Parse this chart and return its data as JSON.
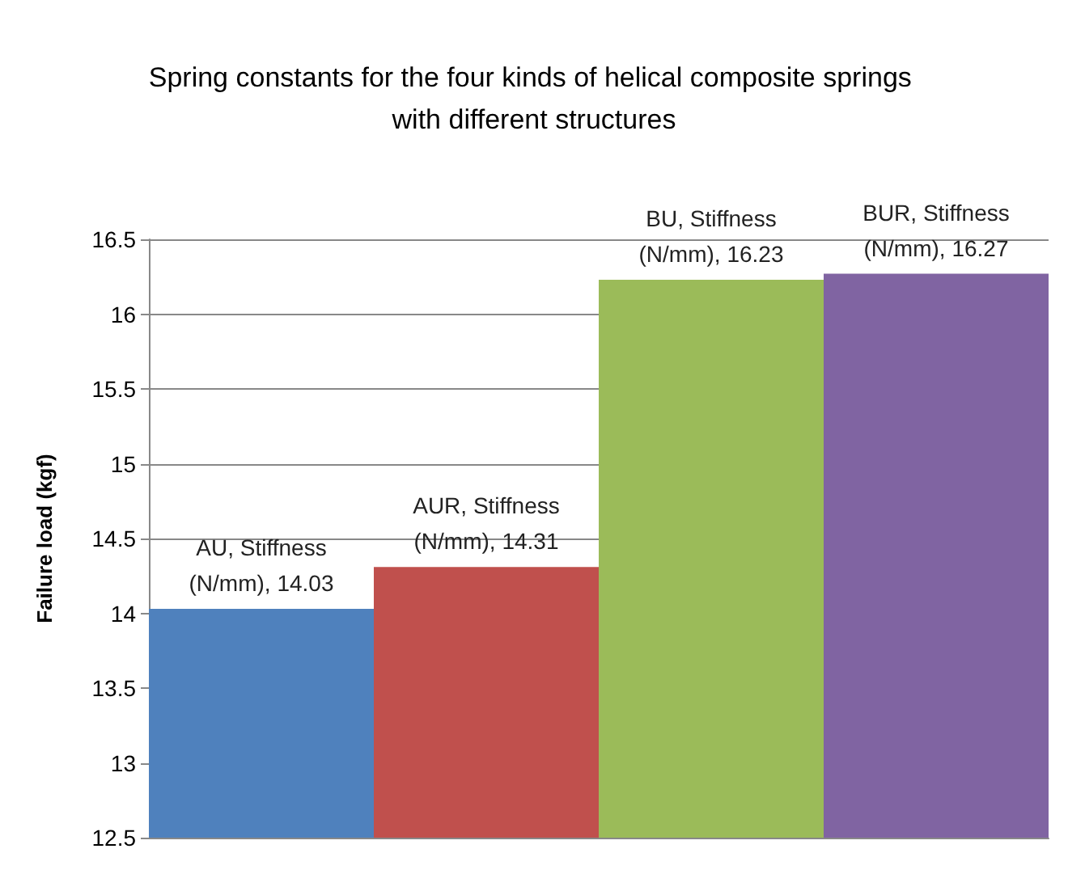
{
  "chart_data": {
    "type": "bar",
    "title": "Spring constants for the four kinds of helical composite springs with different structures",
    "ylabel": "Failure load (kgf)",
    "categories": [
      null,
      null,
      null,
      null
    ],
    "series": [
      {
        "colors": [
          "#4f81bd",
          "#c0504d",
          "#9bbb59",
          "#8064a2"
        ],
        "values": [
          14.03,
          14.31,
          16.23,
          16.27
        ],
        "value_labels": [
          "AU, Stiffness (N/mm), 14.03",
          "AUR, Stiffness (N/mm), 14.31",
          "BU, Stiffness (N/mm), 16.23",
          "BUR, Stiffness (N/mm), 16.27"
        ]
      }
    ],
    "ylim": [
      12.5,
      16.5
    ],
    "yticks": [
      12.5,
      13,
      13.5,
      14,
      14.5,
      15,
      15.5,
      16,
      16.5
    ],
    "grid": "y",
    "tick_labels": "y"
  }
}
